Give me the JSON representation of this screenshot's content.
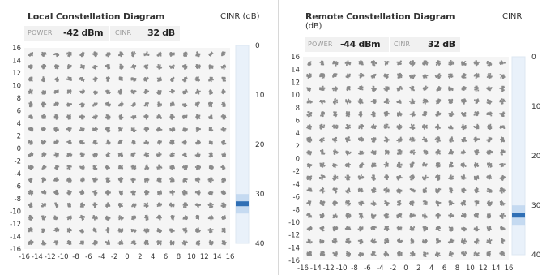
{
  "local": {
    "title": "Local Constellation Diagram",
    "cinr_title": "CINR (dB)",
    "power_label": "POWER",
    "power_value": "-42 dBm",
    "cinr_label": "CINR",
    "cinr_value": "32 dB",
    "cinr_db": 32
  },
  "remote": {
    "title": "Remote Constellation Diagram",
    "title_cont": "(dB)",
    "cinr_title": "CINR",
    "power_label": "POWER",
    "power_value": "-44 dBm",
    "cinr_label": "CINR",
    "cinr_value": "32 dB",
    "cinr_db": 32
  },
  "chart_data": [
    {
      "type": "scatter",
      "title": "Local Constellation Diagram",
      "constellation": "256-QAM",
      "xlim": [
        -16,
        16
      ],
      "ylim": [
        16,
        -16
      ],
      "x_ticks": [
        "-16",
        "-14",
        "-12",
        "-10",
        "-8",
        "-6",
        "-4",
        "-2",
        "0",
        "2",
        "4",
        "6",
        "8",
        "10",
        "12",
        "14",
        "16"
      ],
      "y_ticks": [
        "16",
        "14",
        "12",
        "10",
        "8",
        "6",
        "4",
        "2",
        "0",
        "-2",
        "-4",
        "-6",
        "-8",
        "-10",
        "-12",
        "-14",
        "-16"
      ],
      "symbol_levels": [
        -15,
        -13,
        -11,
        -9,
        -7,
        -5,
        -3,
        -1,
        1,
        3,
        5,
        7,
        9,
        11,
        13,
        15
      ],
      "noise_spread": 0.35
    },
    {
      "type": "bar",
      "title": "CINR (dB)",
      "orientation": "vertical",
      "ylim": [
        0,
        40
      ],
      "ticks": [
        "0",
        "10",
        "20",
        "30",
        "40"
      ],
      "value": 32
    },
    {
      "type": "scatter",
      "title": "Remote Constellation Diagram",
      "constellation": "256-QAM",
      "xlim": [
        -16,
        16
      ],
      "ylim": [
        16,
        -16
      ],
      "x_ticks": [
        "-16",
        "-14",
        "-12",
        "-10",
        "-8",
        "-6",
        "-4",
        "-2",
        "0",
        "2",
        "4",
        "6",
        "8",
        "10",
        "12",
        "14",
        "16"
      ],
      "y_ticks": [
        "16",
        "14",
        "12",
        "10",
        "8",
        "6",
        "4",
        "2",
        "0",
        "-2",
        "-4",
        "-6",
        "-8",
        "-10",
        "-12",
        "-14",
        "-16"
      ],
      "symbol_levels": [
        -15,
        -13,
        -11,
        -9,
        -7,
        -5,
        -3,
        -1,
        1,
        3,
        5,
        7,
        9,
        11,
        13,
        15
      ],
      "noise_spread": 0.38
    },
    {
      "type": "bar",
      "title": "CINR",
      "orientation": "vertical",
      "ylim": [
        0,
        40
      ],
      "ticks": [
        "0",
        "10",
        "20",
        "30",
        "40"
      ],
      "value": 32
    }
  ],
  "colors": {
    "point": "#8a8a8a",
    "plot_bg": "#f5f5f5",
    "grid_dot": "#cfcfcf",
    "meter_track": "#e9f1fa",
    "meter_marker": "#2f6fb5",
    "meter_glow": "#a7c7ea"
  }
}
